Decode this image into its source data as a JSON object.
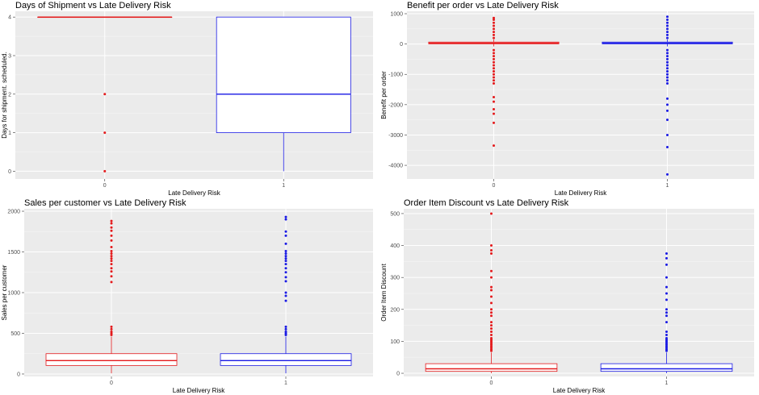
{
  "colors": {
    "group0": "#e41a1c",
    "group1": "#1a1ae4",
    "panel_bg": "#ebebeb",
    "grid": "#ffffff"
  },
  "chart_data": [
    {
      "type": "box",
      "title": "Days of Shipment vs Late Delivery Risk",
      "xlabel": "Late Delivery Risk",
      "ylabel": "Days for shipment. scheduled.",
      "categories": [
        "0",
        "1"
      ],
      "ylim": [
        -0.2,
        4.15
      ],
      "yticks": [
        0,
        1,
        2,
        3,
        4
      ],
      "grid": true,
      "legend": "none",
      "boxes": [
        {
          "category": "0",
          "q1": 4,
          "median": 4,
          "q3": 4,
          "whisker_low": 4,
          "whisker_high": 4,
          "outliers": [
            0,
            1,
            2
          ]
        },
        {
          "category": "1",
          "q1": 1,
          "median": 2,
          "q3": 4,
          "whisker_low": 0,
          "whisker_high": 4,
          "outliers": []
        }
      ]
    },
    {
      "type": "box",
      "title": "Benefit per order vs Late Delivery Risk",
      "xlabel": "Late Delivery Risk",
      "ylabel": "Benefit per order",
      "categories": [
        "0",
        "1"
      ],
      "ylim": [
        -4450,
        1080
      ],
      "yticks": [
        -4000,
        -3000,
        -2000,
        -1000,
        0,
        1000
      ],
      "grid": true,
      "legend": "none",
      "boxes": [
        {
          "category": "0",
          "q1": 7,
          "median": 31,
          "q3": 64,
          "whisker_low": -79,
          "whisker_high": 150,
          "outliers": [
            -1300,
            -1200,
            -1100,
            -1000,
            -900,
            -800,
            -700,
            -600,
            -500,
            -400,
            -300,
            -200,
            200,
            300,
            400,
            500,
            600,
            700,
            800,
            860,
            -1750,
            -1900,
            -2150,
            -2300,
            -2600,
            -3350
          ]
        },
        {
          "category": "1",
          "q1": 7,
          "median": 31,
          "q3": 64,
          "whisker_low": -79,
          "whisker_high": 150,
          "outliers": [
            -1300,
            -1200,
            -1100,
            -1000,
            -900,
            -800,
            -700,
            -600,
            -500,
            -400,
            -300,
            -200,
            200,
            300,
            400,
            500,
            600,
            700,
            800,
            900,
            -1800,
            -2000,
            -2200,
            -2500,
            -3000,
            -3400,
            -4300
          ]
        }
      ]
    },
    {
      "type": "box",
      "title": "Sales per customer vs Late Delivery Risk",
      "xlabel": "Late Delivery Risk",
      "ylabel": "Sales per customer",
      "categories": [
        "0",
        "1"
      ],
      "ylim": [
        -30,
        2030
      ],
      "yticks": [
        0,
        500,
        1000,
        1500,
        2000
      ],
      "grid": true,
      "legend": "none",
      "boxes": [
        {
          "category": "0",
          "q1": 105,
          "median": 165,
          "q3": 250,
          "whisker_low": 8,
          "whisker_high": 460,
          "outliers": [
            480,
            500,
            520,
            550,
            580,
            1130,
            1200,
            1260,
            1300,
            1350,
            1390,
            1420,
            1450,
            1480,
            1510,
            1560,
            1640,
            1700,
            1760,
            1800,
            1850,
            1880
          ]
        },
        {
          "category": "1",
          "q1": 105,
          "median": 165,
          "q3": 250,
          "whisker_low": 8,
          "whisker_high": 460,
          "outliers": [
            480,
            500,
            520,
            550,
            580,
            900,
            960,
            1000,
            1140,
            1190,
            1250,
            1300,
            1350,
            1390,
            1420,
            1450,
            1480,
            1510,
            1600,
            1700,
            1750,
            1900,
            1930
          ]
        }
      ]
    },
    {
      "type": "box",
      "title": "Order Item Discount vs Late Delivery Risk",
      "xlabel": "Late Delivery Risk",
      "ylabel": "Order Item Discount",
      "categories": [
        "0",
        "1"
      ],
      "ylim": [
        -10,
        515
      ],
      "yticks": [
        0,
        100,
        200,
        300,
        400,
        500
      ],
      "grid": true,
      "legend": "none",
      "boxes": [
        {
          "category": "0",
          "q1": 6,
          "median": 14,
          "q3": 30,
          "whisker_low": 0,
          "whisker_high": 65,
          "outliers": [
            70,
            75,
            80,
            85,
            90,
            95,
            100,
            105,
            110,
            120,
            130,
            140,
            150,
            160,
            180,
            190,
            200,
            220,
            240,
            260,
            270,
            300,
            320,
            375,
            385,
            400,
            500
          ]
        },
        {
          "category": "1",
          "q1": 6,
          "median": 14,
          "q3": 30,
          "whisker_low": 0,
          "whisker_high": 65,
          "outliers": [
            70,
            75,
            80,
            85,
            90,
            95,
            100,
            105,
            110,
            120,
            130,
            160,
            180,
            190,
            200,
            230,
            250,
            270,
            300,
            340,
            360,
            375
          ]
        }
      ]
    }
  ]
}
